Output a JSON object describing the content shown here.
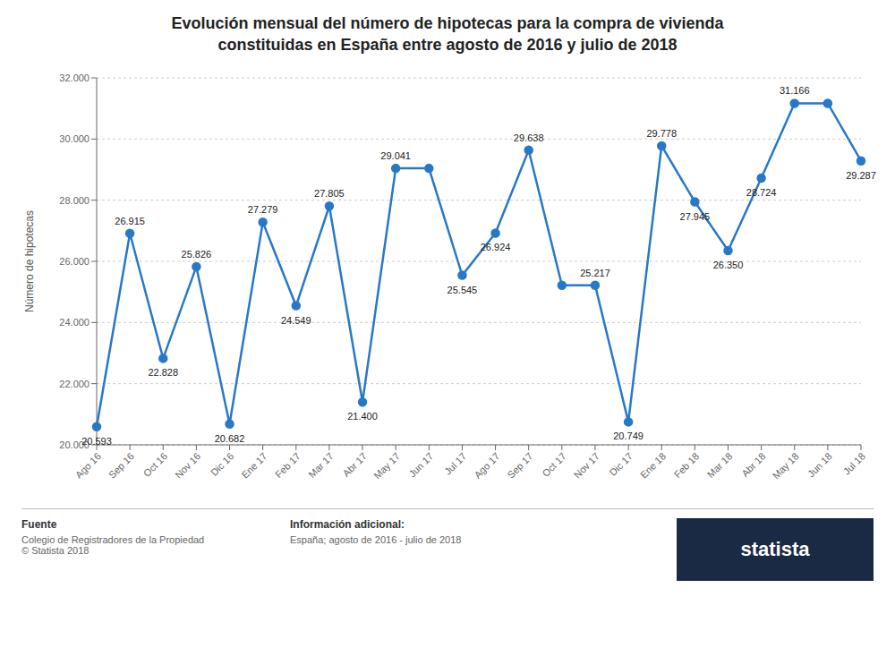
{
  "chart_data": {
    "type": "line",
    "title": "Evolución mensual del número de hipotecas para la compra de vivienda\nconstituidas en España entre agosto de 2016 y julio de 2018",
    "ylabel": "Número de hipotecas",
    "categories": [
      "Ago 16",
      "Sep 16",
      "Oct 16",
      "Nov 16",
      "Dic 16",
      "Ene 17",
      "Feb 17",
      "Mar 17",
      "Abr 17",
      "May 17",
      "Jun 17",
      "Jul 17",
      "Ago 17",
      "Sep 17",
      "Oct 17",
      "Nov 17",
      "Dic 17",
      "Ene 18",
      "Feb 18",
      "Mar 18",
      "Abr 18",
      "May 18",
      "Jun 18",
      "Jul 18"
    ],
    "values": [
      20593,
      26915,
      22828,
      25826,
      20682,
      27279,
      24549,
      27805,
      21400,
      29041,
      29041,
      25545,
      26924,
      29638,
      25217,
      25217,
      20749,
      29778,
      27945,
      26350,
      28724,
      31166,
      31166,
      29287
    ],
    "value_labels": [
      "20.593",
      "26.915",
      "22.828",
      "25.826",
      "20.682",
      "27.279",
      "24.549",
      "27.805",
      "21.400",
      "29.041",
      null,
      "25.545",
      "26.924",
      "29.638",
      null,
      "25.217",
      "20.749",
      "29.778",
      "27.945",
      "26.350",
      "28.724",
      "31.166",
      null,
      "29.287"
    ],
    "data_labels": true,
    "color": "#2878c8",
    "marker": "circle",
    "grid": true,
    "ylim": [
      20000,
      32000
    ],
    "yticks": [
      {
        "value": 20000,
        "label": "20.000"
      },
      {
        "value": 22000,
        "label": "22.000"
      },
      {
        "value": 24000,
        "label": "24.000"
      },
      {
        "value": 26000,
        "label": "26.000"
      },
      {
        "value": 28000,
        "label": "28.000"
      },
      {
        "value": 30000,
        "label": "30.000"
      },
      {
        "value": 32000,
        "label": "32.000"
      }
    ],
    "annotations": [
      "Fuente",
      "Colegio de Registradores de la Propiedad",
      "© Statista 2018",
      "Información adicional:",
      "España; agosto de 2016 - julio de 2018",
      "statista"
    ]
  }
}
